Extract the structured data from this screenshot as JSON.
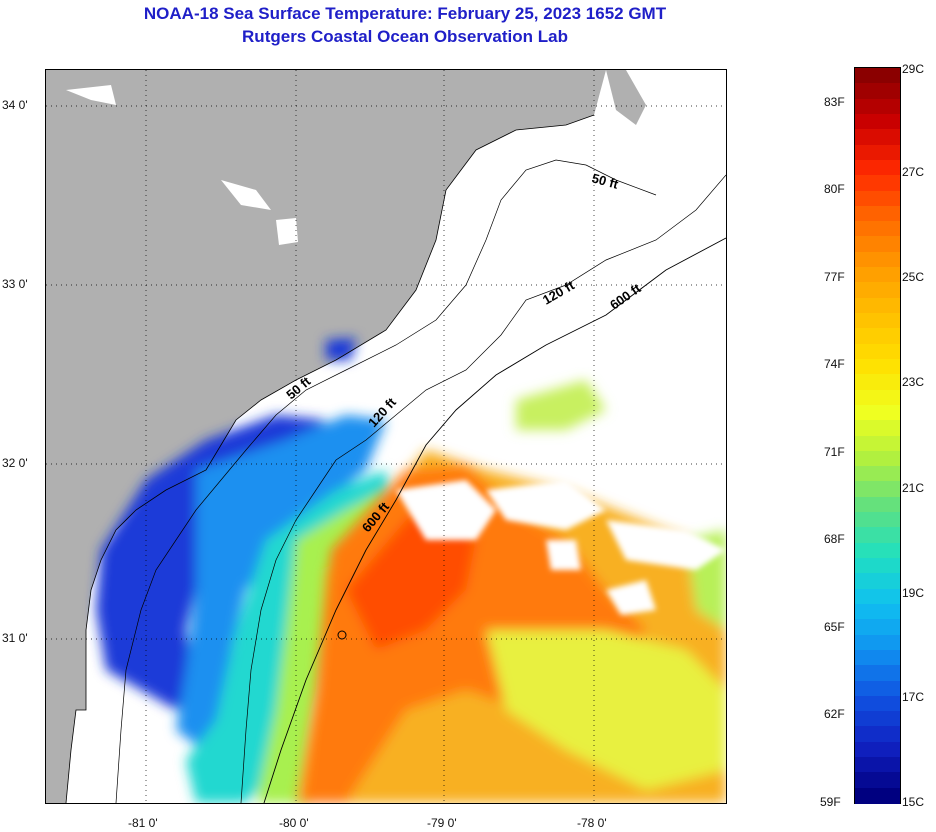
{
  "title": {
    "line1": "NOAA-18 Sea Surface Temperature:  February 25, 2023 1652 GMT",
    "line2": "Rutgers Coastal Ocean Observation Lab"
  },
  "axes": {
    "latitude_labels": [
      "34 0'",
      "33 0'",
      "32 0'",
      "31 0'"
    ],
    "longitude_labels": [
      "-81 0'",
      "-80 0'",
      "-79 0'",
      "-78 0'"
    ]
  },
  "isobaths": {
    "label_50": "50 ft",
    "label_120": "120 ft",
    "label_600": "600 ft"
  },
  "colorbar": {
    "fahrenheit_labels": [
      "83F",
      "80F",
      "77F",
      "74F",
      "71F",
      "68F",
      "65F",
      "62F",
      "59F"
    ],
    "celsius_labels": [
      "29C",
      "27C",
      "25C",
      "23C",
      "21C",
      "19C",
      "17C",
      "15C"
    ],
    "range_c": [
      15,
      29
    ],
    "range_f": [
      59,
      83
    ],
    "colors": [
      "#8b0000",
      "#cc0000",
      "#ff2a00",
      "#ff6a00",
      "#ff9a00",
      "#ffc000",
      "#ffe000",
      "#f0ff20",
      "#b0f040",
      "#60e080",
      "#20e0c0",
      "#10c0f0",
      "#1090f0",
      "#1050e0",
      "#1020c0",
      "#000080"
    ]
  },
  "map": {
    "land_color": "#b0b0b0",
    "water_color": "#ffffff",
    "cold_color": "#1530d0",
    "warm_color": "#ff7000"
  }
}
